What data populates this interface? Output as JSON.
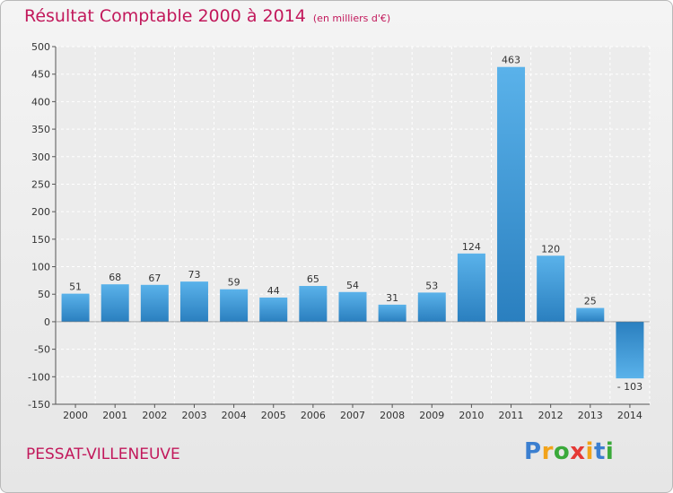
{
  "chart_data": {
    "type": "bar",
    "title": "Résultat Comptable 2000 à 2014",
    "subtitle": "(en milliers d'€)",
    "categories": [
      "2000",
      "2001",
      "2002",
      "2003",
      "2004",
      "2005",
      "2006",
      "2007",
      "2008",
      "2009",
      "2010",
      "2011",
      "2012",
      "2013",
      "2014"
    ],
    "values": [
      51,
      68,
      67,
      73,
      59,
      44,
      65,
      54,
      31,
      53,
      124,
      463,
      120,
      25,
      -103
    ],
    "value_labels": [
      "51",
      "68",
      "67",
      "73",
      "59",
      "44",
      "65",
      "54",
      "31",
      "53",
      "124",
      "463",
      "120",
      "25",
      "- 103"
    ],
    "ylim": [
      -150,
      500
    ],
    "yticks": [
      -150,
      -100,
      -50,
      0,
      50,
      100,
      150,
      200,
      250,
      300,
      350,
      400,
      450,
      500
    ],
    "ytick_labels": [
      "-150",
      "-100",
      "-50",
      "0",
      "50",
      "100",
      "150",
      "200",
      "250",
      "300",
      "350",
      "400",
      "450",
      "500"
    ],
    "xlabel": "",
    "ylabel": "",
    "grid": true,
    "bar_color": "#3a8fd0"
  },
  "footer": {
    "location": "PESSAT-VILLENEUVE",
    "logo_letters": [
      "P",
      "r",
      "o",
      "x",
      "i",
      "t",
      "i"
    ],
    "logo_colors": [
      "#3b7fd0",
      "#f2a31a",
      "#3aa93a",
      "#e53935",
      "#f2a31a",
      "#3b7fd0",
      "#3aa93a"
    ]
  }
}
